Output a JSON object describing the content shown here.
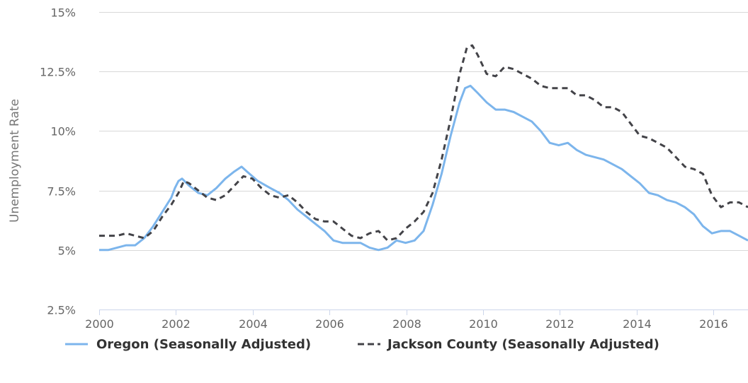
{
  "chart_data": {
    "type": "line",
    "title": "",
    "xlabel": "",
    "ylabel": "Unemployment Rate",
    "xlim": [
      2000,
      2016.9
    ],
    "ylim": [
      2.5,
      15
    ],
    "x_ticks": [
      {
        "value": 2000,
        "label": "2000"
      },
      {
        "value": 2002,
        "label": "2002"
      },
      {
        "value": 2004,
        "label": "2004"
      },
      {
        "value": 2006,
        "label": "2006"
      },
      {
        "value": 2008,
        "label": "2008"
      },
      {
        "value": 2010,
        "label": "2010"
      },
      {
        "value": 2012,
        "label": "2012"
      },
      {
        "value": 2014,
        "label": "2014"
      },
      {
        "value": 2016,
        "label": "2016"
      }
    ],
    "y_ticks": [
      {
        "value": 2.5,
        "label": "2.5%"
      },
      {
        "value": 5,
        "label": "5%"
      },
      {
        "value": 7.5,
        "label": "7.5%"
      },
      {
        "value": 10,
        "label": "10%"
      },
      {
        "value": 12.5,
        "label": "12.5%"
      },
      {
        "value": 15,
        "label": "15%"
      }
    ],
    "grid": "horizontal",
    "legend_position": "bottom-center",
    "series": [
      {
        "name": "Oregon (Seasonally Adjusted)",
        "color": "#7cb5ec",
        "dash": "solid",
        "points": [
          [
            2000.0,
            5.0
          ],
          [
            2000.25,
            5.0
          ],
          [
            2000.5,
            5.1
          ],
          [
            2000.75,
            5.2
          ],
          [
            2001.0,
            5.2
          ],
          [
            2001.25,
            5.5
          ],
          [
            2001.5,
            6.0
          ],
          [
            2001.75,
            6.6
          ],
          [
            2002.0,
            7.2
          ],
          [
            2002.1,
            7.6
          ],
          [
            2002.2,
            7.9
          ],
          [
            2002.3,
            8.0
          ],
          [
            2002.5,
            7.7
          ],
          [
            2002.75,
            7.4
          ],
          [
            2003.0,
            7.3
          ],
          [
            2003.25,
            7.6
          ],
          [
            2003.5,
            8.0
          ],
          [
            2003.75,
            8.3
          ],
          [
            2003.95,
            8.5
          ],
          [
            2004.1,
            8.3
          ],
          [
            2004.4,
            7.9
          ],
          [
            2004.75,
            7.6
          ],
          [
            2005.0,
            7.4
          ],
          [
            2005.25,
            7.1
          ],
          [
            2005.5,
            6.7
          ],
          [
            2005.75,
            6.4
          ],
          [
            2006.0,
            6.1
          ],
          [
            2006.25,
            5.8
          ],
          [
            2006.5,
            5.4
          ],
          [
            2006.75,
            5.3
          ],
          [
            2007.0,
            5.3
          ],
          [
            2007.25,
            5.3
          ],
          [
            2007.5,
            5.1
          ],
          [
            2007.75,
            5.0
          ],
          [
            2008.0,
            5.1
          ],
          [
            2008.25,
            5.4
          ],
          [
            2008.5,
            5.3
          ],
          [
            2008.75,
            5.4
          ],
          [
            2009.0,
            5.8
          ],
          [
            2009.25,
            6.9
          ],
          [
            2009.5,
            8.2
          ],
          [
            2009.75,
            9.8
          ],
          [
            2010.0,
            11.2
          ],
          [
            2010.15,
            11.8
          ],
          [
            2010.3,
            11.9
          ],
          [
            2010.5,
            11.6
          ],
          [
            2010.75,
            11.2
          ],
          [
            2011.0,
            10.9
          ],
          [
            2011.25,
            10.9
          ],
          [
            2011.5,
            10.8
          ],
          [
            2011.75,
            10.6
          ],
          [
            2012.0,
            10.4
          ],
          [
            2012.25,
            10.0
          ],
          [
            2012.5,
            9.5
          ],
          [
            2012.75,
            9.4
          ],
          [
            2013.0,
            9.5
          ],
          [
            2013.25,
            9.2
          ],
          [
            2013.5,
            9.0
          ],
          [
            2013.75,
            8.9
          ],
          [
            2014.0,
            8.8
          ],
          [
            2014.25,
            8.6
          ],
          [
            2014.5,
            8.4
          ],
          [
            2014.75,
            8.1
          ],
          [
            2015.0,
            7.8
          ],
          [
            2015.25,
            7.4
          ],
          [
            2015.5,
            7.3
          ],
          [
            2015.75,
            7.1
          ],
          [
            2016.0,
            7.0
          ],
          [
            2016.25,
            6.8
          ],
          [
            2016.5,
            6.5
          ],
          [
            2016.75,
            6.0
          ],
          [
            2017.0,
            5.7
          ],
          [
            2017.25,
            5.8
          ],
          [
            2017.5,
            5.8
          ],
          [
            2017.75,
            5.6
          ],
          [
            2018.0,
            5.4
          ]
        ]
      },
      {
        "name": "Jackson County (Seasonally Adjusted)",
        "color": "#434348",
        "dash": "8,6",
        "points": [
          [
            2000.0,
            5.6
          ],
          [
            2000.25,
            5.6
          ],
          [
            2000.5,
            5.6
          ],
          [
            2000.75,
            5.7
          ],
          [
            2001.0,
            5.6
          ],
          [
            2001.25,
            5.5
          ],
          [
            2001.5,
            5.8
          ],
          [
            2001.75,
            6.4
          ],
          [
            2002.0,
            6.9
          ],
          [
            2002.2,
            7.4
          ],
          [
            2002.35,
            7.9
          ],
          [
            2002.5,
            7.8
          ],
          [
            2002.75,
            7.5
          ],
          [
            2003.0,
            7.2
          ],
          [
            2003.25,
            7.1
          ],
          [
            2003.5,
            7.3
          ],
          [
            2003.75,
            7.7
          ],
          [
            2004.0,
            8.1
          ],
          [
            2004.25,
            8.0
          ],
          [
            2004.5,
            7.6
          ],
          [
            2004.75,
            7.3
          ],
          [
            2005.0,
            7.2
          ],
          [
            2005.25,
            7.3
          ],
          [
            2005.5,
            7.0
          ],
          [
            2005.75,
            6.6
          ],
          [
            2006.0,
            6.3
          ],
          [
            2006.25,
            6.2
          ],
          [
            2006.5,
            6.2
          ],
          [
            2006.75,
            5.9
          ],
          [
            2007.0,
            5.6
          ],
          [
            2007.25,
            5.5
          ],
          [
            2007.5,
            5.7
          ],
          [
            2007.75,
            5.8
          ],
          [
            2008.0,
            5.4
          ],
          [
            2008.25,
            5.5
          ],
          [
            2008.5,
            5.9
          ],
          [
            2008.75,
            6.2
          ],
          [
            2009.0,
            6.6
          ],
          [
            2009.25,
            7.4
          ],
          [
            2009.5,
            8.8
          ],
          [
            2009.75,
            10.5
          ],
          [
            2010.0,
            12.4
          ],
          [
            2010.2,
            13.5
          ],
          [
            2010.35,
            13.6
          ],
          [
            2010.5,
            13.2
          ],
          [
            2010.75,
            12.4
          ],
          [
            2011.0,
            12.3
          ],
          [
            2011.25,
            12.7
          ],
          [
            2011.5,
            12.6
          ],
          [
            2011.75,
            12.4
          ],
          [
            2012.0,
            12.2
          ],
          [
            2012.25,
            11.9
          ],
          [
            2012.5,
            11.8
          ],
          [
            2012.75,
            11.8
          ],
          [
            2013.0,
            11.8
          ],
          [
            2013.25,
            11.5
          ],
          [
            2013.5,
            11.5
          ],
          [
            2013.75,
            11.3
          ],
          [
            2014.0,
            11.0
          ],
          [
            2014.25,
            11.0
          ],
          [
            2014.5,
            10.8
          ],
          [
            2014.75,
            10.3
          ],
          [
            2015.0,
            9.8
          ],
          [
            2015.25,
            9.7
          ],
          [
            2015.5,
            9.5
          ],
          [
            2015.75,
            9.3
          ],
          [
            2016.0,
            8.9
          ],
          [
            2016.25,
            8.5
          ],
          [
            2016.5,
            8.4
          ],
          [
            2016.75,
            8.2
          ],
          [
            2017.0,
            7.3
          ],
          [
            2017.25,
            6.8
          ],
          [
            2017.5,
            7.0
          ],
          [
            2017.75,
            7.0
          ],
          [
            2018.0,
            6.8
          ]
        ]
      }
    ]
  }
}
